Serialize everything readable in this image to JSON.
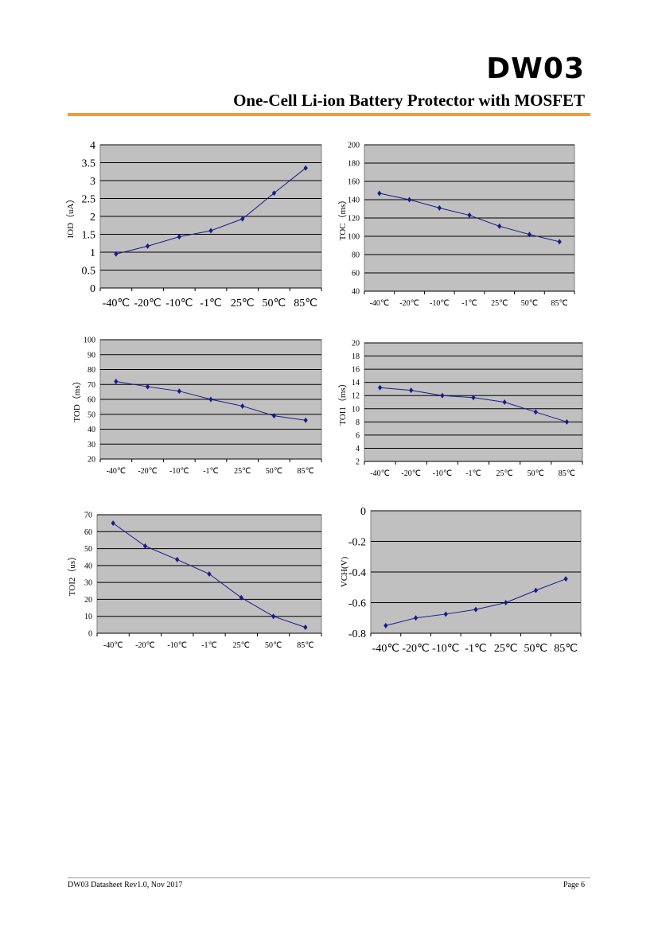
{
  "header": {
    "brand": "DW03",
    "subtitle": "One-Cell Li-ion Battery Protector with MOSFET"
  },
  "footer": {
    "left": "DW03 Datasheet Rev1.0, Nov 2017",
    "right": "Page 6"
  },
  "colors": {
    "accent": "#f39a3c",
    "plot_bg": "#c0c0c0",
    "series": "#1a1a8c"
  },
  "chart_data": [
    {
      "type": "line",
      "ylabel": "IOD（uA）",
      "categories": [
        "-40℃",
        "-20℃",
        "-10℃",
        "-1℃",
        "25℃",
        "50℃",
        "85℃"
      ],
      "values": [
        0.95,
        1.17,
        1.43,
        1.6,
        1.93,
        2.65,
        3.35
      ],
      "ylim": [
        0,
        4
      ],
      "yticks": [
        "0",
        "0.5",
        "1",
        "1.5",
        "2",
        "2.5",
        "3",
        "3.5",
        "4"
      ],
      "grid": true
    },
    {
      "type": "line",
      "ylabel": "TOC（ms）",
      "categories": [
        "-40℃",
        "-20℃",
        "-10℃",
        "-1℃",
        "25℃",
        "50℃",
        "85℃"
      ],
      "values": [
        147,
        140,
        131,
        123,
        111,
        102,
        94
      ],
      "ylim": [
        40,
        200
      ],
      "yticks": [
        "40",
        "60",
        "80",
        "100",
        "120",
        "140",
        "160",
        "180",
        "200"
      ],
      "grid": true
    },
    {
      "type": "line",
      "ylabel": "TOD（ms）",
      "categories": [
        "-40℃",
        "-20℃",
        "-10℃",
        "-1℃",
        "25℃",
        "50℃",
        "85℃"
      ],
      "values": [
        72,
        68.5,
        65.5,
        60,
        55.5,
        49,
        46
      ],
      "ylim": [
        20,
        100
      ],
      "yticks": [
        "20",
        "30",
        "40",
        "50",
        "60",
        "70",
        "80",
        "90",
        "100"
      ],
      "grid": true
    },
    {
      "type": "line",
      "ylabel": "TOI1（ms）",
      "categories": [
        "-40℃",
        "-20℃",
        "-10℃",
        "-1℃",
        "25℃",
        "50℃",
        "85℃"
      ],
      "values": [
        13.2,
        12.8,
        12,
        11.7,
        11,
        9.5,
        8
      ],
      "ylim": [
        2,
        20
      ],
      "yticks": [
        "2",
        "4",
        "6",
        "8",
        "10",
        "12",
        "14",
        "16",
        "18",
        "20"
      ],
      "grid": true
    },
    {
      "type": "line",
      "ylabel": "TOI2（us）",
      "categories": [
        "-40℃",
        "-20℃",
        "-10℃",
        "-1℃",
        "25℃",
        "50℃",
        "85℃"
      ],
      "values": [
        65,
        51.5,
        43.5,
        35,
        21,
        10,
        3.5
      ],
      "ylim": [
        0,
        70
      ],
      "yticks": [
        "0",
        "10",
        "20",
        "30",
        "40",
        "50",
        "60",
        "70"
      ],
      "grid": true
    },
    {
      "type": "line",
      "ylabel": "VCH(V)",
      "categories": [
        "-40℃",
        "-20℃",
        "-10℃",
        "-1℃",
        "25℃",
        "50℃",
        "85℃"
      ],
      "values": [
        -0.75,
        -0.7,
        -0.675,
        -0.645,
        -0.6,
        -0.52,
        -0.445
      ],
      "ylim": [
        -0.8,
        0
      ],
      "yticks": [
        "-0.8",
        "-0.6",
        "-0.4",
        "-0.2",
        "0"
      ],
      "grid": true
    }
  ]
}
